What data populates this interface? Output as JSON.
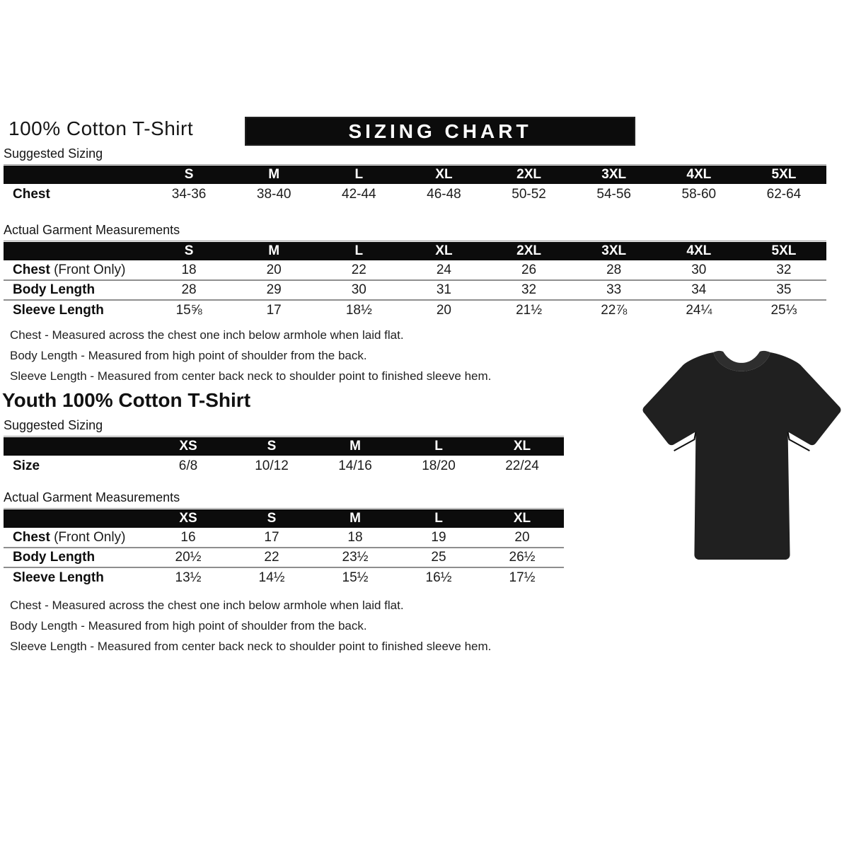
{
  "header": {
    "title": "100% Cotton T-Shirt",
    "banner": "SIZING CHART"
  },
  "labels": {
    "suggested": "Suggested Sizing",
    "actual": "Actual Garment Measurements"
  },
  "adult": {
    "suggested_table": {
      "columns": [
        "",
        "S",
        "M",
        "L",
        "XL",
        "2XL",
        "3XL",
        "4XL",
        "5XL"
      ],
      "rows": [
        {
          "label": "Chest",
          "label_note": "",
          "values": [
            "34-36",
            "38-40",
            "42-44",
            "46-48",
            "50-52",
            "54-56",
            "58-60",
            "62-64"
          ]
        }
      ]
    },
    "actual_table": {
      "columns": [
        "",
        "S",
        "M",
        "L",
        "XL",
        "2XL",
        "3XL",
        "4XL",
        "5XL"
      ],
      "rows": [
        {
          "label": "Chest",
          "label_note": "(Front Only)",
          "values": [
            "18",
            "20",
            "22",
            "24",
            "26",
            "28",
            "30",
            "32"
          ]
        },
        {
          "label": "Body Length",
          "label_note": "",
          "values": [
            "28",
            "29",
            "30",
            "31",
            "32",
            "33",
            "34",
            "35"
          ]
        },
        {
          "label": "Sleeve Length",
          "label_note": "",
          "values": [
            "15⅝",
            "17",
            "18½",
            "20",
            "21½",
            "22⅞",
            "24¼",
            "25⅓"
          ]
        }
      ]
    },
    "notes": [
      "Chest - Measured across the chest one inch below armhole when laid flat.",
      "Body Length - Measured from high point of shoulder from the back.",
      "Sleeve Length - Measured from center back neck to shoulder point to finished sleeve hem."
    ]
  },
  "youth": {
    "title": "Youth 100% Cotton T-Shirt",
    "suggested_table": {
      "columns": [
        "",
        "XS",
        "S",
        "M",
        "L",
        "XL"
      ],
      "rows": [
        {
          "label": "Size",
          "label_note": "",
          "values": [
            "6/8",
            "10/12",
            "14/16",
            "18/20",
            "22/24"
          ]
        }
      ]
    },
    "actual_table": {
      "columns": [
        "",
        "XS",
        "S",
        "M",
        "L",
        "XL"
      ],
      "rows": [
        {
          "label": "Chest",
          "label_note": "(Front Only)",
          "values": [
            "16",
            "17",
            "18",
            "19",
            "20"
          ]
        },
        {
          "label": "Body Length",
          "label_note": "",
          "values": [
            "20½",
            "22",
            "23½",
            "25",
            "26½"
          ]
        },
        {
          "label": "Sleeve Length",
          "label_note": "",
          "values": [
            "13½",
            "14½",
            "15½",
            "16½",
            "17½"
          ]
        }
      ]
    },
    "notes": [
      "Chest - Measured across the chest one inch below armhole when laid flat.",
      "Body Length - Measured from high point of shoulder from the back.",
      "Sleeve Length - Measured from center back neck to shoulder point to finished sleeve hem."
    ]
  },
  "tshirt_image": {
    "description": "black short-sleeve crew-neck t-shirt",
    "body_color": "#202020",
    "collar_color": "#2e2e2e"
  },
  "colors": {
    "banner_bg": "#0c0c0c",
    "banner_text": "#ffffff",
    "table_header_bg": "#0c0c0c",
    "row_divider": "#8e8e8e",
    "text": "#1a1a1a"
  }
}
